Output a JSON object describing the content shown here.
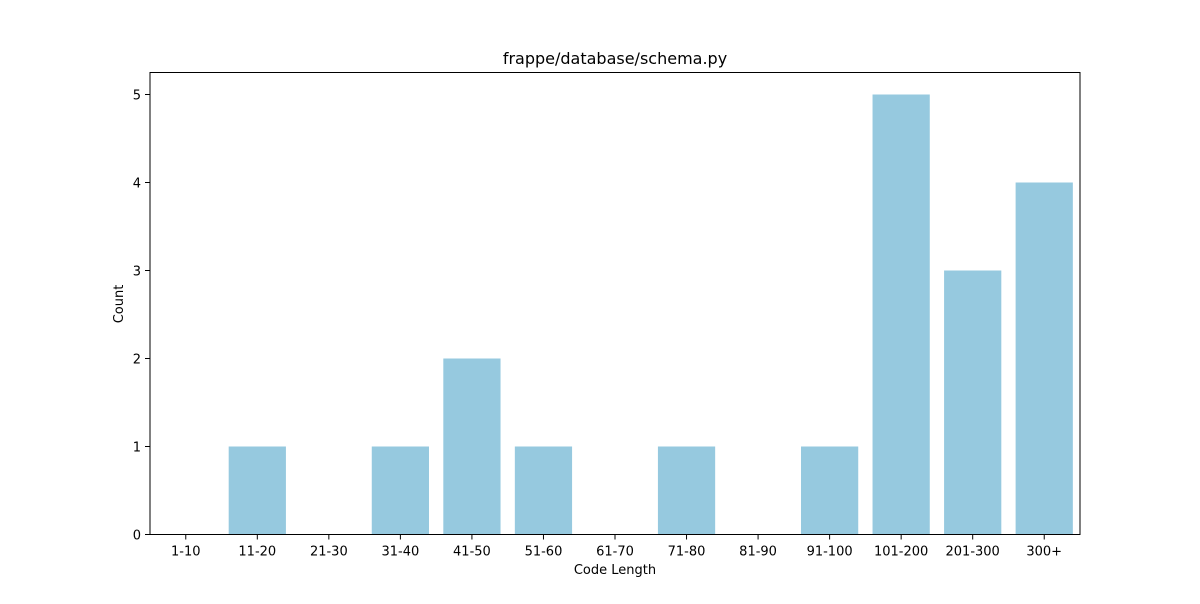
{
  "chart_data": {
    "type": "bar",
    "title": "frappe/database/schema.py",
    "xlabel": "Code Length",
    "ylabel": "Count",
    "categories": [
      "1-10",
      "11-20",
      "21-30",
      "31-40",
      "41-50",
      "51-60",
      "61-70",
      "71-80",
      "81-90",
      "91-100",
      "101-200",
      "201-300",
      "300+"
    ],
    "values": [
      0,
      1,
      0,
      1,
      2,
      1,
      0,
      1,
      0,
      1,
      5,
      3,
      4
    ],
    "yticks": [
      0,
      1,
      2,
      3,
      4,
      5
    ],
    "ylim": [
      0,
      5.25
    ],
    "grid": false,
    "colors": {
      "bar": "#96c9df",
      "axis": "#000000"
    }
  }
}
